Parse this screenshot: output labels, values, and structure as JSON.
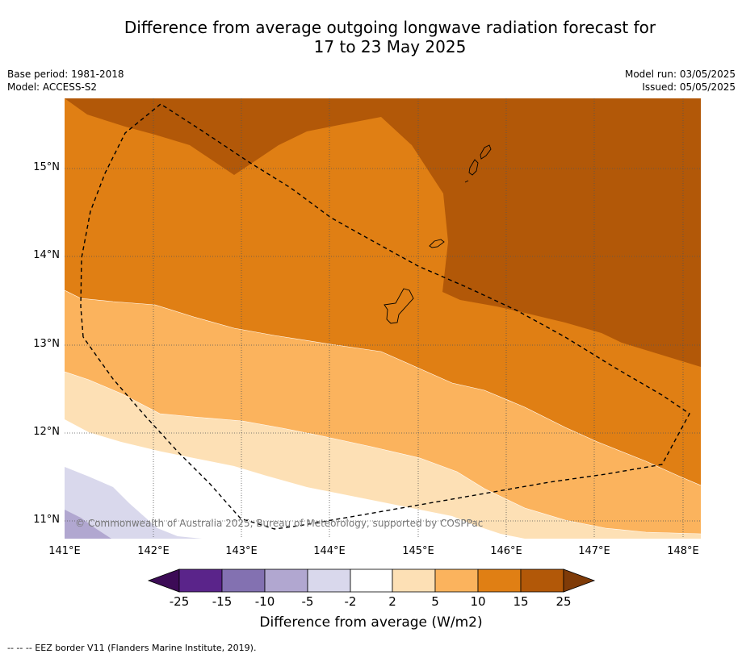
{
  "title_line1": "Difference from average outgoing longwave radiation forecast for",
  "title_line2": "17 to 23 May 2025",
  "meta_left": {
    "base_period": "Base period: 1981-2018",
    "model": "Model: ACCESS-S2"
  },
  "meta_right": {
    "model_run": "Model run: 03/05/2025",
    "issued": "Issued: 05/05/2025"
  },
  "latitude_labels": [
    "15°N",
    "14°N",
    "13°N",
    "12°N",
    "11°N"
  ],
  "longitude_labels": [
    "141°E",
    "142°E",
    "143°E",
    "144°E",
    "145°E",
    "146°E",
    "147°E",
    "148°E"
  ],
  "copyright": "© Commonwealth of Australia 2025, Bureau of Meteorology, supported by COSPPac",
  "colorbar": {
    "ticks": [
      "-25",
      "-15",
      "-10",
      "-5",
      "-2",
      "2",
      "5",
      "10",
      "15",
      "25"
    ],
    "colors": [
      "#3c0b56",
      "#5a248a",
      "#8371b1",
      "#b1a7d0",
      "#d9d8ec",
      "#ffffff",
      "#fde0b5",
      "#fbb35d",
      "#e07f14",
      "#b25808",
      "#7f3b08"
    ],
    "label": "Difference from average (W/m2)"
  },
  "footnote": "--  --  -- EEZ border V11 (Flanders Marine Institute, 2019)."
}
